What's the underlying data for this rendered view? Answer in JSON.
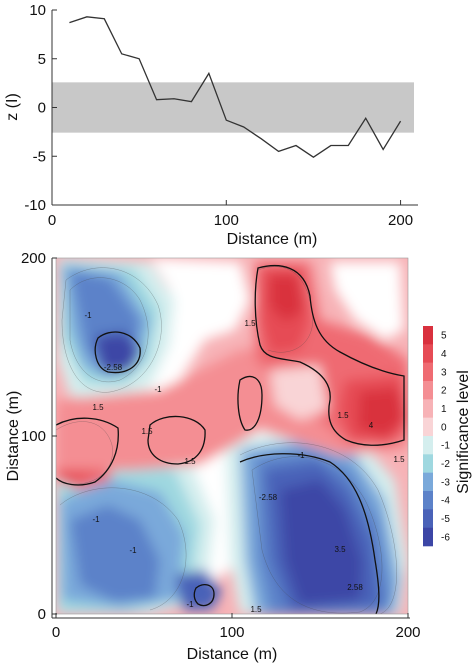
{
  "chart_data": [
    {
      "type": "line",
      "ylabel": "z (I)",
      "xlabel": "Distance (m)",
      "xlim": [
        0,
        210
      ],
      "ylim": [
        -10,
        10
      ],
      "xticks": [
        "0",
        "100",
        "200"
      ],
      "yticks": [
        "10",
        "5",
        "0",
        "-5",
        "-10"
      ],
      "band": {
        "ymin": -2.58,
        "ymax": 2.58,
        "color": "#c8c8c8"
      },
      "line_color": "#333333",
      "x": [
        10,
        20,
        30,
        40,
        50,
        60,
        70,
        80,
        90,
        100,
        110,
        120,
        130,
        140,
        150,
        160,
        170,
        180,
        190,
        200
      ],
      "y": [
        8.7,
        9.3,
        9.1,
        5.5,
        5.0,
        0.8,
        0.9,
        0.6,
        3.5,
        -1.3,
        -2.0,
        -3.2,
        -4.5,
        -3.9,
        -5.1,
        -3.9,
        -3.9,
        -1.1,
        -4.3,
        -1.4
      ]
    },
    {
      "type": "heatmap",
      "ylabel": "Distance (m)",
      "xlabel": "Distance (m)",
      "xlim": [
        0,
        200
      ],
      "ylim": [
        0,
        200
      ],
      "xticks": [
        "0",
        "100",
        "200"
      ],
      "yticks": [
        "200",
        "100",
        "0"
      ],
      "colorbar": {
        "label": "Significance level",
        "ticks": [
          "5",
          "4",
          "3",
          "2",
          "1",
          "0",
          "-1",
          "-2",
          "-3",
          "-4",
          "-5",
          "-6"
        ],
        "colors": [
          "#d9313e",
          "#e64b55",
          "#ef6b72",
          "#f48e93",
          "#f7b2b6",
          "#f9d4d6",
          "#d4eeee",
          "#9fd8e0",
          "#7aa9da",
          "#5c82c9",
          "#4a62b8",
          "#3c46a6"
        ]
      },
      "contour_labels": [
        "-1",
        "-2.58",
        "-1",
        "1.5",
        "1.5",
        "1.5",
        "1.5",
        "1.5",
        "4",
        "1.5",
        "-1",
        "-2.58",
        "3.5",
        "2.58",
        "-1",
        "-1",
        "1.5",
        "-1"
      ]
    }
  ]
}
